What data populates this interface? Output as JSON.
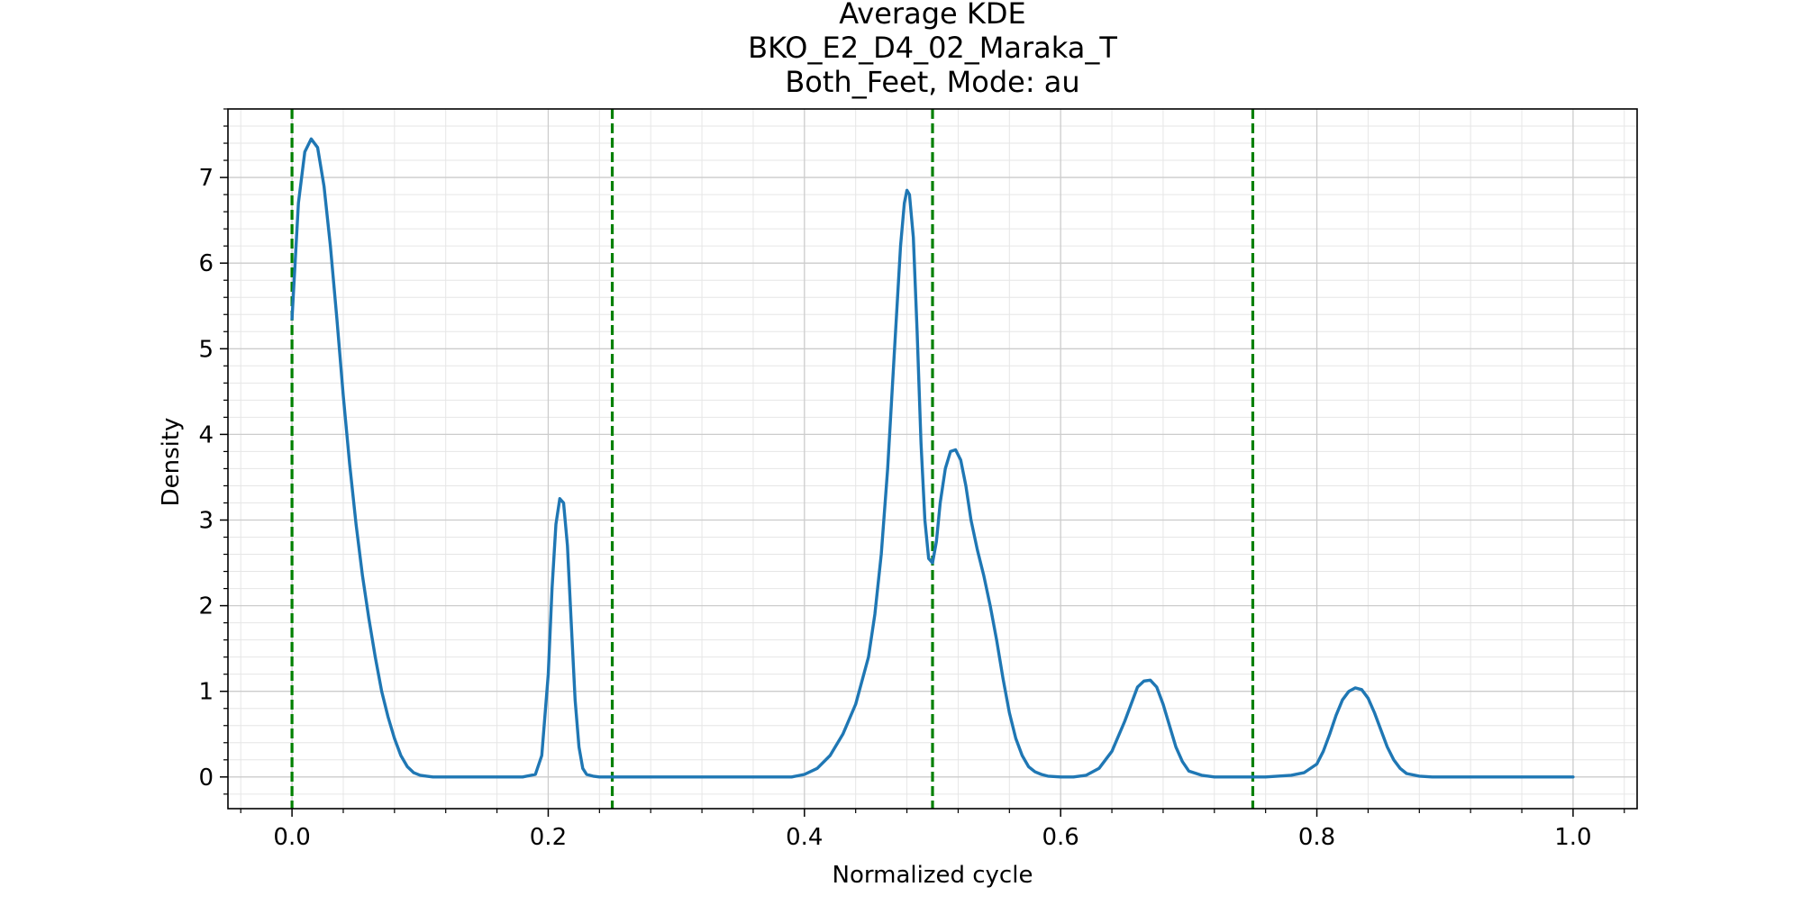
{
  "chart_data": {
    "type": "line",
    "title": [
      "Average KDE",
      "BKO_E2_D4_02_Maraka_T",
      "Both_Feet, Mode: au"
    ],
    "xlabel": "Normalized cycle",
    "ylabel": "Density",
    "xlim": [
      -0.05,
      1.05
    ],
    "ylim": [
      -0.37,
      7.8
    ],
    "x_ticks": [
      0.0,
      0.2,
      0.4,
      0.6,
      0.8,
      1.0
    ],
    "x_tick_labels": [
      "0.0",
      "0.2",
      "0.4",
      "0.6",
      "0.8",
      "1.0"
    ],
    "y_ticks": [
      0,
      1,
      2,
      3,
      4,
      5,
      6,
      7
    ],
    "y_tick_labels": [
      "0",
      "1",
      "2",
      "3",
      "4",
      "5",
      "6",
      "7"
    ],
    "grid": "major and minor",
    "vertical_lines": {
      "x": [
        0.0,
        0.25,
        0.5,
        0.75
      ],
      "color": "#008000",
      "style": "dashed"
    },
    "series": [
      {
        "color": "#1f77b4",
        "x": [
          0.0,
          0.005,
          0.01,
          0.015,
          0.02,
          0.025,
          0.03,
          0.035,
          0.04,
          0.045,
          0.05,
          0.055,
          0.06,
          0.065,
          0.07,
          0.075,
          0.08,
          0.085,
          0.09,
          0.095,
          0.1,
          0.105,
          0.11,
          0.12,
          0.14,
          0.16,
          0.18,
          0.19,
          0.195,
          0.2,
          0.203,
          0.206,
          0.209,
          0.212,
          0.215,
          0.218,
          0.221,
          0.224,
          0.227,
          0.23,
          0.235,
          0.24,
          0.25,
          0.3,
          0.35,
          0.39,
          0.4,
          0.41,
          0.42,
          0.43,
          0.44,
          0.45,
          0.455,
          0.46,
          0.465,
          0.47,
          0.475,
          0.478,
          0.48,
          0.482,
          0.485,
          0.488,
          0.491,
          0.494,
          0.497,
          0.5,
          0.503,
          0.506,
          0.51,
          0.514,
          0.518,
          0.522,
          0.526,
          0.53,
          0.535,
          0.54,
          0.545,
          0.55,
          0.555,
          0.56,
          0.565,
          0.57,
          0.575,
          0.58,
          0.585,
          0.59,
          0.6,
          0.61,
          0.62,
          0.63,
          0.64,
          0.65,
          0.655,
          0.66,
          0.665,
          0.67,
          0.675,
          0.68,
          0.685,
          0.69,
          0.695,
          0.7,
          0.71,
          0.72,
          0.76,
          0.78,
          0.79,
          0.8,
          0.805,
          0.81,
          0.815,
          0.82,
          0.825,
          0.83,
          0.835,
          0.84,
          0.845,
          0.85,
          0.855,
          0.86,
          0.865,
          0.87,
          0.88,
          0.89,
          0.9,
          1.0
        ],
        "y": [
          5.35,
          6.7,
          7.3,
          7.45,
          7.35,
          6.9,
          6.2,
          5.35,
          4.45,
          3.65,
          2.95,
          2.35,
          1.85,
          1.4,
          1.0,
          0.7,
          0.45,
          0.25,
          0.12,
          0.05,
          0.02,
          0.01,
          0.0,
          0.0,
          0.0,
          0.0,
          0.0,
          0.03,
          0.25,
          1.2,
          2.2,
          2.95,
          3.25,
          3.2,
          2.7,
          1.8,
          0.9,
          0.35,
          0.1,
          0.03,
          0.01,
          0.0,
          0.0,
          0.0,
          0.0,
          0.0,
          0.03,
          0.1,
          0.25,
          0.5,
          0.85,
          1.4,
          1.9,
          2.6,
          3.6,
          4.9,
          6.2,
          6.7,
          6.85,
          6.8,
          6.3,
          5.2,
          3.9,
          3.0,
          2.55,
          2.5,
          2.75,
          3.2,
          3.6,
          3.8,
          3.82,
          3.7,
          3.4,
          3.0,
          2.65,
          2.35,
          2.0,
          1.6,
          1.15,
          0.75,
          0.45,
          0.25,
          0.12,
          0.06,
          0.03,
          0.01,
          0.0,
          0.0,
          0.02,
          0.1,
          0.3,
          0.65,
          0.85,
          1.05,
          1.12,
          1.13,
          1.05,
          0.85,
          0.6,
          0.35,
          0.18,
          0.07,
          0.02,
          0.0,
          0.0,
          0.02,
          0.05,
          0.15,
          0.3,
          0.5,
          0.72,
          0.9,
          1.0,
          1.04,
          1.02,
          0.92,
          0.75,
          0.55,
          0.35,
          0.2,
          0.1,
          0.04,
          0.01,
          0.0,
          0.0,
          0.0
        ]
      }
    ]
  }
}
